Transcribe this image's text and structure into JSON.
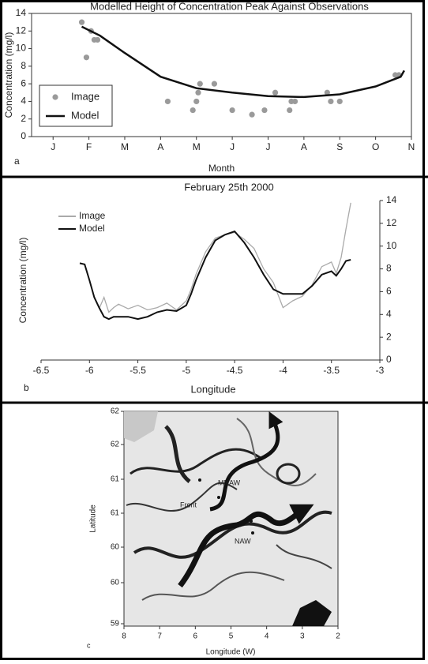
{
  "chart_data": [
    {
      "type": "combo",
      "title": "Modelled Height of Concentration Peak Against Observations",
      "xlabel": "Month",
      "ylabel": "Concentration (mg/l)",
      "panel_label": "a",
      "xlim": [
        -0.6,
        10
      ],
      "xticks": [
        {
          "value": 0,
          "label": "J"
        },
        {
          "value": 1,
          "label": "F"
        },
        {
          "value": 2,
          "label": "M"
        },
        {
          "value": 3,
          "label": "A"
        },
        {
          "value": 4,
          "label": "M"
        },
        {
          "value": 5,
          "label": "J"
        },
        {
          "value": 6,
          "label": "J"
        },
        {
          "value": 7,
          "label": "A"
        },
        {
          "value": 8,
          "label": "S"
        },
        {
          "value": 9,
          "label": "O"
        },
        {
          "value": 10,
          "label": "N"
        }
      ],
      "ylim": [
        0,
        14
      ],
      "yticks": [
        0,
        2,
        4,
        6,
        8,
        10,
        12,
        14
      ],
      "legend": "lower left",
      "series": [
        {
          "name": "Image",
          "type": "scatter",
          "color": "#9a9a9a",
          "x": [
            0.8,
            0.93,
            1.06,
            1.15,
            1.24,
            3.2,
            3.9,
            4.0,
            4.05,
            4.1,
            4.5,
            5.0,
            5.55,
            5.9,
            6.2,
            6.6,
            6.65,
            6.75,
            7.65,
            7.75,
            8.0,
            9.55,
            9.65
          ],
          "values": [
            13,
            9,
            12,
            11,
            11,
            4,
            3,
            4,
            5,
            6,
            6,
            3,
            2.5,
            3,
            5,
            3,
            4,
            4,
            5,
            4,
            4,
            7,
            7
          ]
        },
        {
          "name": "Model",
          "type": "line",
          "color": "#111111",
          "x": [
            0.8,
            1.3,
            2,
            3,
            4,
            5,
            6,
            7,
            8,
            9,
            9.7,
            9.8
          ],
          "values": [
            12.5,
            11.5,
            9.5,
            6.8,
            5.5,
            5,
            4.6,
            4.5,
            4.8,
            5.7,
            6.8,
            7.5
          ]
        }
      ]
    },
    {
      "type": "line",
      "title": "February 25th 2000",
      "xlabel": "Longitude",
      "ylabel": "Concentration (mg/l)",
      "panel_label": "b",
      "xlim": [
        -6.5,
        -3
      ],
      "xticks": [
        -6.5,
        -6,
        -5.5,
        -5,
        -4.5,
        -4,
        -3.5,
        -3
      ],
      "ylim": [
        0,
        14
      ],
      "yticks": [
        0,
        2,
        4,
        6,
        8,
        10,
        12,
        14
      ],
      "legend": "upper left",
      "x": [
        -6.1,
        -6.05,
        -6.0,
        -5.95,
        -5.9,
        -5.85,
        -5.8,
        -5.75,
        -5.7,
        -5.6,
        -5.5,
        -5.4,
        -5.3,
        -5.2,
        -5.1,
        -5.0,
        -4.95,
        -4.9,
        -4.8,
        -4.7,
        -4.6,
        -4.5,
        -4.4,
        -4.3,
        -4.2,
        -4.1,
        -4.0,
        -3.9,
        -3.8,
        -3.7,
        -3.6,
        -3.5,
        -3.45,
        -3.4,
        -3.35,
        -3.3
      ],
      "series": [
        {
          "name": "Image",
          "color": "#aaaaaa",
          "values": [
            null,
            null,
            null,
            null,
            4.5,
            5.5,
            4.2,
            4.6,
            4.9,
            4.5,
            4.8,
            4.4,
            4.6,
            5,
            4.4,
            5.2,
            6.2,
            7.5,
            9.5,
            10.7,
            11,
            11.2,
            10.6,
            9.8,
            8,
            6.8,
            4.6,
            5.2,
            5.6,
            6.6,
            8.2,
            8.6,
            7.6,
            9,
            11.5,
            13.8
          ]
        },
        {
          "name": "Model",
          "color": "#111111",
          "values": [
            8.5,
            8.4,
            7,
            5.5,
            4.6,
            3.8,
            3.6,
            3.8,
            3.8,
            3.8,
            3.6,
            3.8,
            4.2,
            4.4,
            4.3,
            4.8,
            5.8,
            7,
            9,
            10.5,
            11,
            11.3,
            10.3,
            9,
            7.5,
            6.2,
            5.8,
            5.8,
            5.8,
            6.5,
            7.5,
            7.8,
            7.4,
            8,
            8.7,
            8.8
          ]
        }
      ]
    },
    {
      "type": "map",
      "xlabel": "Longitude (W)",
      "ylabel": "Latitude",
      "panel_label": "c",
      "xlim": [
        8,
        2
      ],
      "xticks": [
        8,
        7,
        6,
        5,
        4,
        3,
        2
      ],
      "ytick_labels": [
        "62",
        "62",
        "61",
        "61",
        "60",
        "60",
        "59"
      ],
      "annotations": [
        "MNAW",
        "Front",
        "NAW"
      ]
    }
  ]
}
